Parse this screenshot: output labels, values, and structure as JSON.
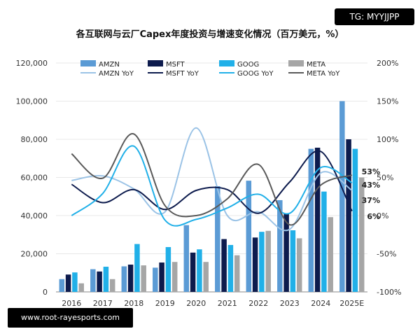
{
  "watermarks": {
    "top": "TG: MYYJJPP",
    "bottom": "www.root-rayesports.com"
  },
  "chart_data": {
    "type": "bar",
    "title": "各互联网与云厂Capex年度投资与增速变化情况（百万美元，%）",
    "categories": [
      "2016",
      "2017",
      "2018",
      "2019",
      "2020",
      "2021",
      "2022",
      "2023",
      "2024",
      "2025E"
    ],
    "ylim": [
      0,
      120000
    ],
    "y_ticks": [
      "0",
      "20,000",
      "40,000",
      "60,000",
      "80,000",
      "100,000",
      "120,000"
    ],
    "y2lim": [
      -100,
      200
    ],
    "y2_ticks": [
      "-100%",
      "-50%",
      "0%",
      "50%",
      "100%",
      "150%",
      "200%"
    ],
    "legend_position": "top",
    "series": [
      {
        "name": "AMZN",
        "color": "#5b9bd5",
        "values": [
          6700,
          11900,
          13400,
          12700,
          35000,
          55400,
          58300,
          48100,
          75000,
          100000
        ]
      },
      {
        "name": "MSFT",
        "color": "#0d1b4d",
        "values": [
          9100,
          10700,
          14300,
          15400,
          20600,
          27700,
          28500,
          41000,
          75600,
          80000
        ]
      },
      {
        "name": "GOOG",
        "color": "#21b0e8",
        "values": [
          10200,
          13200,
          25100,
          23500,
          22300,
          24600,
          31500,
          32300,
          52600,
          75000
        ]
      },
      {
        "name": "META",
        "color": "#a6a6a6",
        "values": [
          4500,
          6700,
          13900,
          15700,
          15700,
          19200,
          32000,
          28100,
          39200,
          60000
        ]
      }
    ],
    "line_series": [
      {
        "name": "AMZN YoY",
        "color": "#9bc3e6",
        "values": [
          46,
          52,
          35,
          5,
          115,
          0,
          5,
          -18,
          56,
          33
        ]
      },
      {
        "name": "MSFT YoY",
        "color": "#0d1b4d",
        "values": [
          41,
          17,
          34,
          8,
          33,
          34,
          3,
          44,
          84,
          6
        ]
      },
      {
        "name": "GOOG YoY",
        "color": "#21b0e8",
        "values": [
          0,
          29,
          91,
          -6,
          -5,
          10,
          28,
          3,
          63,
          43
        ]
      },
      {
        "name": "META YoY",
        "color": "#595959",
        "values": [
          81,
          49,
          107,
          13,
          0,
          22,
          67,
          -12,
          40,
          53
        ]
      }
    ],
    "annotations": [
      "53%",
      "43%",
      "37%",
      "6%"
    ]
  }
}
